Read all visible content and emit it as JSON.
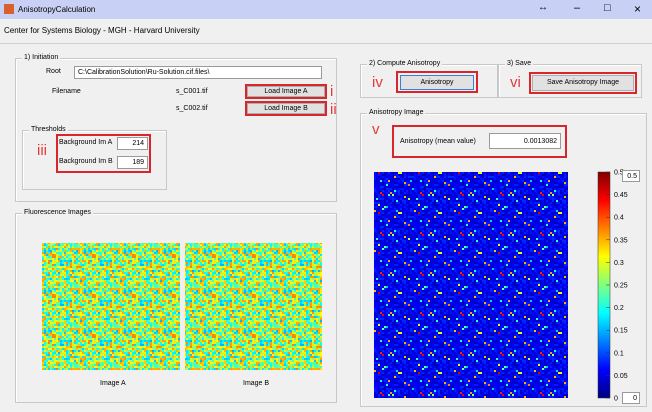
{
  "window": {
    "title": "AnisotropyCalculation"
  },
  "header": {
    "title": "Center for Systems Biology - MGH - Harvard University"
  },
  "initiation": {
    "title": "1) Initiation",
    "root_label": "Root",
    "root_path": "C:\\CalibrationSolution\\Ru-Solution.cif.files\\",
    "filename_label": "Filename",
    "file_a": "s_C001.tif",
    "file_b": "s_C002.tif",
    "button_a": "Load Image A",
    "button_b": "Load Image B"
  },
  "thresholds": {
    "title": "Thresholds",
    "label_a": "Background Im A",
    "value_a": 214,
    "label_b": "Background Im B",
    "value_b": 189
  },
  "fluorescence": {
    "title": "Fluorescence Images",
    "image_a": "Image A",
    "image_b": "Image B"
  },
  "compute": {
    "title": "2) Compute Anisotropy",
    "button": "Anisotropy"
  },
  "save": {
    "title": "3) Save",
    "button": "Save Anisotropy Image"
  },
  "anisotropy": {
    "title": "Anisotropy Image",
    "mean_label": "Anisotropy (mean value)",
    "mean_value": "0.0013082"
  },
  "colorbar": {
    "max": 0.5,
    "min": 0,
    "ticks": [
      0,
      0.05,
      0.1,
      0.15,
      0.2,
      0.25,
      0.3,
      0.35,
      0.4,
      0.45,
      0.5
    ]
  },
  "annotations": [
    "i",
    "ii",
    "iii",
    "iv",
    "v",
    "vi"
  ]
}
